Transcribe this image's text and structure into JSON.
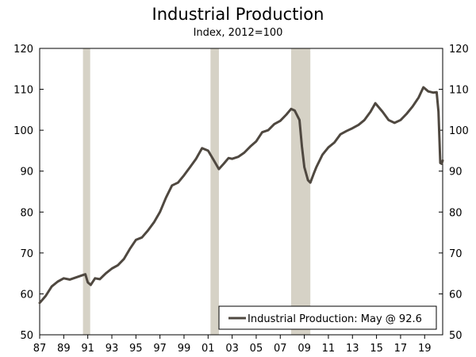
{
  "chart_data": {
    "type": "line",
    "title": "Industrial Production",
    "subtitle": "Index, 2012=100",
    "xlim": [
      1987,
      2020.5
    ],
    "ylim": [
      50,
      120
    ],
    "y_ticks": [
      50,
      60,
      70,
      80,
      90,
      100,
      110,
      120
    ],
    "x_ticks": [
      {
        "value": 1987,
        "label": "87"
      },
      {
        "value": 1989,
        "label": "89"
      },
      {
        "value": 1991,
        "label": "91"
      },
      {
        "value": 1993,
        "label": "93"
      },
      {
        "value": 1995,
        "label": "95"
      },
      {
        "value": 1997,
        "label": "97"
      },
      {
        "value": 1999,
        "label": "99"
      },
      {
        "value": 2001,
        "label": "01"
      },
      {
        "value": 2003,
        "label": "03"
      },
      {
        "value": 2005,
        "label": "05"
      },
      {
        "value": 2007,
        "label": "07"
      },
      {
        "value": 2009,
        "label": "09"
      },
      {
        "value": 2011,
        "label": "11"
      },
      {
        "value": 2013,
        "label": "13"
      },
      {
        "value": 2015,
        "label": "15"
      },
      {
        "value": 2017,
        "label": "17"
      },
      {
        "value": 2019,
        "label": "19"
      }
    ],
    "recessions": [
      {
        "start": 1990.6,
        "end": 1991.2
      },
      {
        "start": 2001.2,
        "end": 2001.9
      },
      {
        "start": 2007.9,
        "end": 2009.5
      }
    ],
    "legend": "Industrial Production: May @ 92.6",
    "legend_position": "bottom-right",
    "series": [
      {
        "name": "Industrial Production",
        "color": "#4f4840",
        "points": [
          [
            1987.0,
            57.8
          ],
          [
            1987.5,
            59.5
          ],
          [
            1988.0,
            61.8
          ],
          [
            1988.5,
            63.0
          ],
          [
            1989.0,
            63.8
          ],
          [
            1989.5,
            63.5
          ],
          [
            1990.0,
            64.0
          ],
          [
            1990.5,
            64.5
          ],
          [
            1990.8,
            64.8
          ],
          [
            1991.0,
            62.8
          ],
          [
            1991.25,
            62.2
          ],
          [
            1991.6,
            63.8
          ],
          [
            1992.0,
            63.6
          ],
          [
            1992.5,
            65.0
          ],
          [
            1993.0,
            66.2
          ],
          [
            1993.5,
            67.0
          ],
          [
            1994.0,
            68.5
          ],
          [
            1994.5,
            71.0
          ],
          [
            1995.0,
            73.2
          ],
          [
            1995.5,
            73.8
          ],
          [
            1996.0,
            75.5
          ],
          [
            1996.5,
            77.5
          ],
          [
            1997.0,
            80.0
          ],
          [
            1997.5,
            83.5
          ],
          [
            1998.0,
            86.5
          ],
          [
            1998.5,
            87.2
          ],
          [
            1999.0,
            89.0
          ],
          [
            1999.5,
            91.0
          ],
          [
            2000.0,
            93.0
          ],
          [
            2000.5,
            95.6
          ],
          [
            2001.0,
            95.0
          ],
          [
            2001.5,
            92.5
          ],
          [
            2001.9,
            90.5
          ],
          [
            2002.3,
            91.8
          ],
          [
            2002.7,
            93.2
          ],
          [
            2003.0,
            93.0
          ],
          [
            2003.5,
            93.5
          ],
          [
            2004.0,
            94.5
          ],
          [
            2004.5,
            96.0
          ],
          [
            2005.0,
            97.3
          ],
          [
            2005.5,
            99.5
          ],
          [
            2006.0,
            100.0
          ],
          [
            2006.5,
            101.5
          ],
          [
            2007.0,
            102.3
          ],
          [
            2007.5,
            103.8
          ],
          [
            2007.9,
            105.2
          ],
          [
            2008.2,
            104.8
          ],
          [
            2008.6,
            102.5
          ],
          [
            2008.8,
            96.0
          ],
          [
            2009.0,
            91.0
          ],
          [
            2009.3,
            87.8
          ],
          [
            2009.5,
            87.2
          ],
          [
            2009.8,
            89.5
          ],
          [
            2010.0,
            91.0
          ],
          [
            2010.5,
            94.0
          ],
          [
            2011.0,
            95.8
          ],
          [
            2011.5,
            97.0
          ],
          [
            2012.0,
            99.0
          ],
          [
            2012.5,
            99.8
          ],
          [
            2013.0,
            100.5
          ],
          [
            2013.5,
            101.3
          ],
          [
            2014.0,
            102.5
          ],
          [
            2014.5,
            104.5
          ],
          [
            2014.9,
            106.6
          ],
          [
            2015.5,
            104.5
          ],
          [
            2016.0,
            102.5
          ],
          [
            2016.5,
            101.8
          ],
          [
            2017.0,
            102.5
          ],
          [
            2017.5,
            104.0
          ],
          [
            2018.0,
            105.8
          ],
          [
            2018.5,
            108.0
          ],
          [
            2018.9,
            110.5
          ],
          [
            2019.3,
            109.5
          ],
          [
            2019.7,
            109.2
          ],
          [
            2020.0,
            109.3
          ],
          [
            2020.15,
            104.5
          ],
          [
            2020.3,
            92.0
          ],
          [
            2020.42,
            91.8
          ],
          [
            2020.5,
            92.6
          ]
        ]
      }
    ]
  }
}
